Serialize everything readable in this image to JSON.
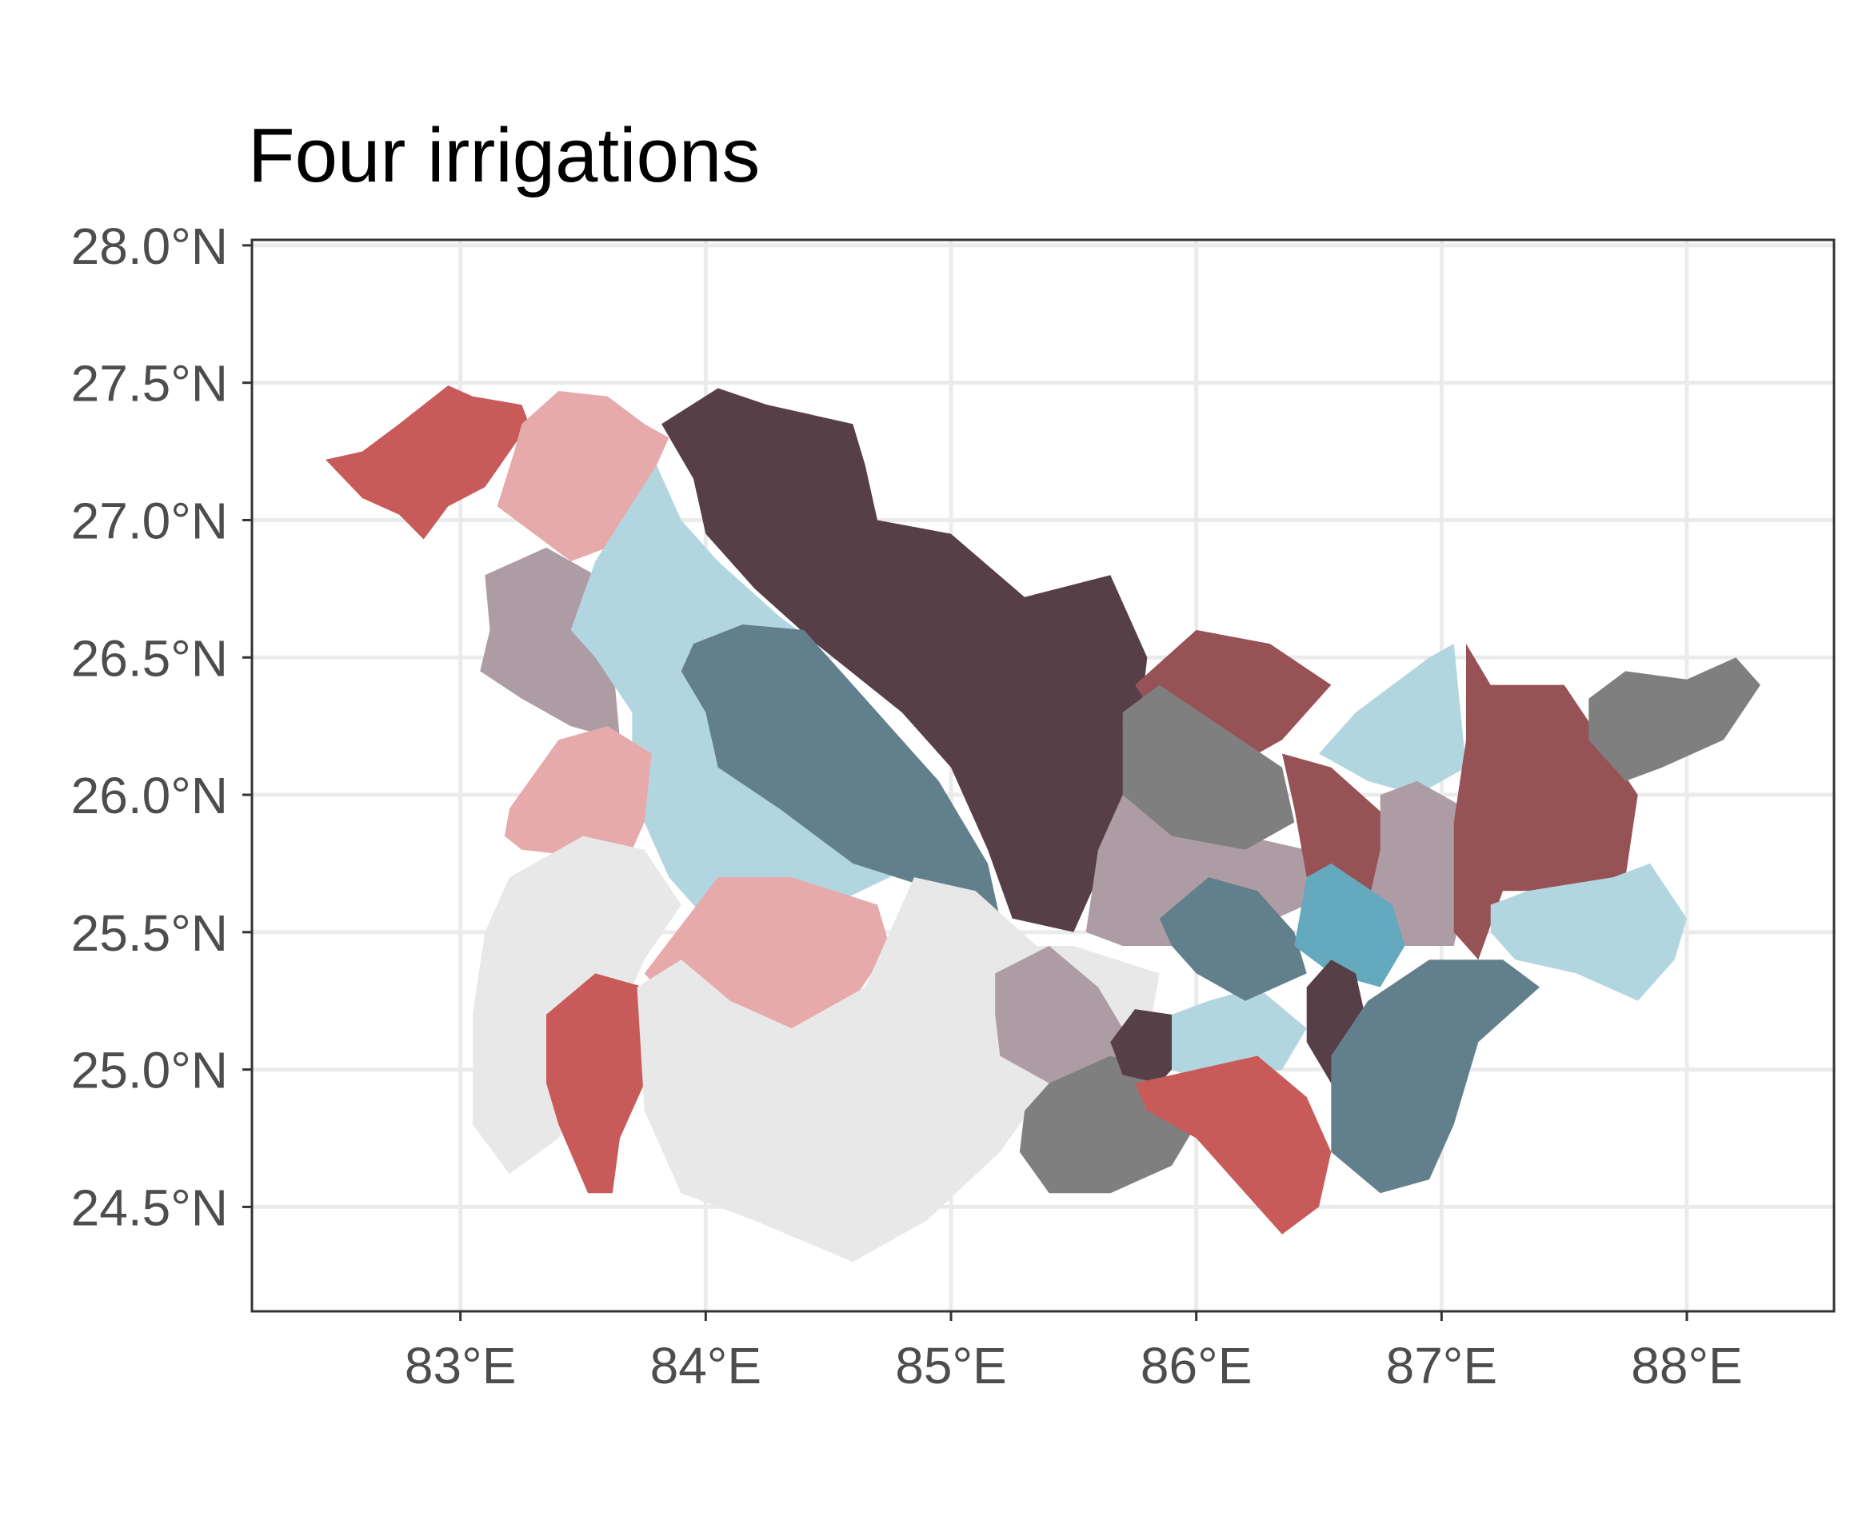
{
  "title": "Four irrigations",
  "x_axis": {
    "ticks": [
      83,
      84,
      85,
      86,
      87,
      88
    ],
    "tick_labels": [
      "83°E",
      "84°E",
      "85°E",
      "86°E",
      "87°E",
      "88°E"
    ],
    "range": [
      82.15,
      88.6
    ]
  },
  "y_axis": {
    "ticks": [
      24.5,
      25.0,
      25.5,
      26.0,
      26.5,
      27.0,
      27.5,
      28.0
    ],
    "tick_labels": [
      "24.5°N",
      "25.0°N",
      "25.5°N",
      "26.0°N",
      "26.5°N",
      "27.0°N",
      "27.5°N",
      "28.0°N"
    ],
    "range": [
      24.12,
      28.02
    ]
  },
  "background_grid": true,
  "legend": "none",
  "palette": {
    "red": "#c95a5a",
    "pink": "#e6aaab",
    "dark_plum": "#573f48",
    "light_blue": "#b2d6e0",
    "mauve": "#ae9ca5",
    "slate_blue": "#62808c",
    "maroon": "#975256",
    "gray": "#7f7f7f",
    "light_gray": "#e8e8e8",
    "teal": "#64a9bd"
  },
  "districts": [
    {
      "id": "nw-red",
      "color": "#c95a5a",
      "outline": [
        [
          82.6,
          27.25
        ],
        [
          82.75,
          27.35
        ],
        [
          82.95,
          27.49
        ],
        [
          83.05,
          27.45
        ],
        [
          83.25,
          27.42
        ],
        [
          83.28,
          27.35
        ],
        [
          83.1,
          27.12
        ],
        [
          82.95,
          27.05
        ],
        [
          82.85,
          26.93
        ],
        [
          82.75,
          27.02
        ],
        [
          82.6,
          27.08
        ],
        [
          82.45,
          27.22
        ]
      ]
    },
    {
      "id": "north-pink",
      "color": "#e6aaab",
      "outline": [
        [
          83.25,
          27.35
        ],
        [
          83.4,
          27.47
        ],
        [
          83.6,
          27.45
        ],
        [
          83.75,
          27.35
        ],
        [
          83.85,
          27.3
        ],
        [
          83.75,
          27.1
        ],
        [
          83.6,
          26.9
        ],
        [
          83.45,
          26.85
        ],
        [
          83.3,
          26.95
        ],
        [
          83.15,
          27.05
        ],
        [
          83.22,
          27.25
        ]
      ]
    },
    {
      "id": "champaran-plum",
      "color": "#573f48",
      "outline": [
        [
          83.82,
          27.35
        ],
        [
          84.05,
          27.48
        ],
        [
          84.25,
          27.42
        ],
        [
          84.6,
          27.35
        ],
        [
          84.65,
          27.2
        ],
        [
          84.7,
          27.0
        ],
        [
          85.0,
          26.95
        ],
        [
          85.3,
          26.72
        ],
        [
          85.65,
          26.8
        ],
        [
          85.8,
          26.5
        ],
        [
          85.75,
          26.1
        ],
        [
          85.65,
          25.8
        ],
        [
          85.5,
          25.5
        ],
        [
          85.25,
          25.55
        ],
        [
          85.15,
          25.8
        ],
        [
          85.0,
          26.1
        ],
        [
          84.8,
          26.3
        ],
        [
          84.45,
          26.55
        ],
        [
          84.2,
          26.75
        ],
        [
          84.0,
          26.95
        ],
        [
          83.95,
          27.15
        ]
      ]
    },
    {
      "id": "west-mauve",
      "color": "#ae9ca5",
      "outline": [
        [
          83.1,
          26.8
        ],
        [
          83.35,
          26.9
        ],
        [
          83.55,
          26.8
        ],
        [
          83.62,
          26.5
        ],
        [
          83.65,
          26.2
        ],
        [
          83.45,
          26.25
        ],
        [
          83.25,
          26.35
        ],
        [
          83.08,
          26.45
        ],
        [
          83.12,
          26.6
        ]
      ]
    },
    {
      "id": "saran-lightblue",
      "color": "#b2d6e0",
      "outline": [
        [
          83.55,
          26.85
        ],
        [
          83.8,
          27.2
        ],
        [
          83.9,
          27.0
        ],
        [
          84.05,
          26.85
        ],
        [
          84.3,
          26.65
        ],
        [
          84.45,
          26.55
        ],
        [
          84.7,
          26.3
        ],
        [
          84.85,
          26.1
        ],
        [
          84.95,
          25.85
        ],
        [
          84.75,
          25.7
        ],
        [
          84.4,
          25.55
        ],
        [
          84.0,
          25.55
        ],
        [
          83.85,
          25.7
        ],
        [
          83.7,
          26.0
        ],
        [
          83.7,
          26.3
        ],
        [
          83.55,
          26.5
        ],
        [
          83.45,
          26.6
        ]
      ]
    },
    {
      "id": "mid-slate",
      "color": "#62808c",
      "outline": [
        [
          83.95,
          26.55
        ],
        [
          84.15,
          26.62
        ],
        [
          84.4,
          26.6
        ],
        [
          84.65,
          26.35
        ],
        [
          84.95,
          26.05
        ],
        [
          85.15,
          25.75
        ],
        [
          85.2,
          25.55
        ],
        [
          84.95,
          25.65
        ],
        [
          84.6,
          25.75
        ],
        [
          84.3,
          25.95
        ],
        [
          84.05,
          26.1
        ],
        [
          84.0,
          26.3
        ],
        [
          83.9,
          26.45
        ]
      ]
    },
    {
      "id": "bhojpur-pink",
      "color": "#e6aaab",
      "outline": [
        [
          83.2,
          25.95
        ],
        [
          83.4,
          26.2
        ],
        [
          83.6,
          26.25
        ],
        [
          83.78,
          26.15
        ],
        [
          83.75,
          25.9
        ],
        [
          83.7,
          25.8
        ],
        [
          83.45,
          25.78
        ],
        [
          83.25,
          25.8
        ],
        [
          83.18,
          25.85
        ]
      ]
    },
    {
      "id": "sw-lightgray",
      "color": "#e8e8e8",
      "outline": [
        [
          83.1,
          25.5
        ],
        [
          83.2,
          25.7
        ],
        [
          83.5,
          25.85
        ],
        [
          83.75,
          25.8
        ],
        [
          83.9,
          25.6
        ],
        [
          83.75,
          25.4
        ],
        [
          83.6,
          25.1
        ],
        [
          83.4,
          24.75
        ],
        [
          83.2,
          24.62
        ],
        [
          83.05,
          24.8
        ],
        [
          83.05,
          25.2
        ]
      ]
    },
    {
      "id": "rohtas-red",
      "color": "#c95a5a",
      "outline": [
        [
          83.35,
          25.2
        ],
        [
          83.55,
          25.35
        ],
        [
          83.75,
          25.3
        ],
        [
          83.75,
          24.95
        ],
        [
          83.65,
          24.75
        ],
        [
          83.62,
          24.55
        ],
        [
          83.52,
          24.55
        ],
        [
          83.4,
          24.8
        ],
        [
          83.35,
          24.95
        ]
      ]
    },
    {
      "id": "patna-pink",
      "color": "#e6aaab",
      "outline": [
        [
          83.75,
          25.35
        ],
        [
          84.05,
          25.7
        ],
        [
          84.35,
          25.7
        ],
        [
          84.7,
          25.6
        ],
        [
          84.75,
          25.45
        ],
        [
          84.6,
          25.25
        ],
        [
          84.35,
          25.15
        ],
        [
          84.1,
          25.2
        ],
        [
          83.85,
          25.25
        ]
      ]
    },
    {
      "id": "south-lightgray",
      "color": "#e8e8e8",
      "outline": [
        [
          83.72,
          25.3
        ],
        [
          83.9,
          25.4
        ],
        [
          84.1,
          25.25
        ],
        [
          84.35,
          25.15
        ],
        [
          84.65,
          25.3
        ],
        [
          84.85,
          25.7
        ],
        [
          85.1,
          25.65
        ],
        [
          85.35,
          25.45
        ],
        [
          85.5,
          25.45
        ],
        [
          85.85,
          25.35
        ],
        [
          85.8,
          25.1
        ],
        [
          85.4,
          24.95
        ],
        [
          85.2,
          24.7
        ],
        [
          84.9,
          24.45
        ],
        [
          84.6,
          24.3
        ],
        [
          84.2,
          24.45
        ],
        [
          83.9,
          24.55
        ],
        [
          83.75,
          24.85
        ]
      ]
    },
    {
      "id": "nalanda-mauve",
      "color": "#ae9ca5",
      "outline": [
        [
          85.18,
          25.35
        ],
        [
          85.4,
          25.45
        ],
        [
          85.6,
          25.3
        ],
        [
          85.7,
          25.15
        ],
        [
          85.65,
          24.95
        ],
        [
          85.4,
          24.95
        ],
        [
          85.2,
          25.05
        ],
        [
          85.18,
          25.2
        ]
      ]
    },
    {
      "id": "nawada-gray",
      "color": "#7f7f7f",
      "outline": [
        [
          85.3,
          24.85
        ],
        [
          85.4,
          24.95
        ],
        [
          85.65,
          25.05
        ],
        [
          85.85,
          25.0
        ],
        [
          86.0,
          24.8
        ],
        [
          85.9,
          24.65
        ],
        [
          85.65,
          24.55
        ],
        [
          85.4,
          24.55
        ],
        [
          85.28,
          24.7
        ]
      ]
    },
    {
      "id": "sheikhpura-plum",
      "color": "#573f48",
      "outline": [
        [
          85.65,
          25.1
        ],
        [
          85.75,
          25.22
        ],
        [
          85.9,
          25.2
        ],
        [
          85.95,
          25.05
        ],
        [
          85.85,
          24.95
        ],
        [
          85.7,
          24.98
        ]
      ]
    },
    {
      "id": "lakhisarai-lightblue",
      "color": "#b2d6e0",
      "outline": [
        [
          85.9,
          25.2
        ],
        [
          86.05,
          25.25
        ],
        [
          86.25,
          25.3
        ],
        [
          86.45,
          25.15
        ],
        [
          86.35,
          25.0
        ],
        [
          86.05,
          24.95
        ],
        [
          85.9,
          25.0
        ]
      ]
    },
    {
      "id": "jamui-red",
      "color": "#c95a5a",
      "outline": [
        [
          85.75,
          24.95
        ],
        [
          86.0,
          25.0
        ],
        [
          86.25,
          25.05
        ],
        [
          86.45,
          24.9
        ],
        [
          86.55,
          24.7
        ],
        [
          86.5,
          24.5
        ],
        [
          86.35,
          24.4
        ],
        [
          86.2,
          24.55
        ],
        [
          86.0,
          24.75
        ],
        [
          85.8,
          24.85
        ]
      ]
    },
    {
      "id": "vaishali-mauve",
      "color": "#ae9ca5",
      "outline": [
        [
          85.55,
          25.5
        ],
        [
          85.6,
          25.8
        ],
        [
          85.7,
          26.0
        ],
        [
          85.95,
          25.95
        ],
        [
          86.2,
          25.85
        ],
        [
          86.45,
          25.8
        ],
        [
          86.45,
          25.6
        ],
        [
          86.2,
          25.5
        ],
        [
          85.95,
          25.45
        ],
        [
          85.7,
          25.45
        ]
      ]
    },
    {
      "id": "samastipur-slate",
      "color": "#62808c",
      "outline": [
        [
          85.85,
          25.55
        ],
        [
          86.05,
          25.7
        ],
        [
          86.25,
          25.65
        ],
        [
          86.4,
          25.5
        ],
        [
          86.45,
          25.35
        ],
        [
          86.2,
          25.25
        ],
        [
          86.0,
          25.35
        ],
        [
          85.9,
          25.45
        ]
      ]
    },
    {
      "id": "darbhanga-maroon",
      "color": "#975256",
      "outline": [
        [
          85.75,
          26.4
        ],
        [
          86.0,
          26.6
        ],
        [
          86.3,
          26.55
        ],
        [
          86.55,
          26.4
        ],
        [
          86.35,
          26.2
        ],
        [
          86.15,
          26.1
        ],
        [
          85.9,
          26.2
        ]
      ]
    },
    {
      "id": "madhubani-gray",
      "color": "#7f7f7f",
      "outline": [
        [
          85.7,
          26.3
        ],
        [
          85.85,
          26.4
        ],
        [
          86.1,
          26.25
        ],
        [
          86.35,
          26.1
        ],
        [
          86.4,
          25.9
        ],
        [
          86.2,
          25.8
        ],
        [
          85.9,
          25.85
        ],
        [
          85.7,
          26.0
        ]
      ]
    },
    {
      "id": "saharsa-maroon",
      "color": "#975256",
      "outline": [
        [
          86.35,
          26.15
        ],
        [
          86.55,
          26.1
        ],
        [
          86.8,
          25.9
        ],
        [
          86.85,
          25.7
        ],
        [
          86.65,
          25.6
        ],
        [
          86.45,
          25.7
        ],
        [
          86.4,
          25.95
        ]
      ]
    },
    {
      "id": "supaul-lightblue",
      "color": "#b2d6e0",
      "outline": [
        [
          86.5,
          26.15
        ],
        [
          86.65,
          26.3
        ],
        [
          86.95,
          26.5
        ],
        [
          87.05,
          26.55
        ],
        [
          87.1,
          26.1
        ],
        [
          86.9,
          26.0
        ],
        [
          86.7,
          26.05
        ]
      ]
    },
    {
      "id": "madhepura-mauve",
      "color": "#ae9ca5",
      "outline": [
        [
          86.75,
          26.0
        ],
        [
          86.9,
          26.05
        ],
        [
          87.1,
          25.95
        ],
        [
          87.1,
          25.65
        ],
        [
          87.05,
          25.45
        ],
        [
          86.85,
          25.45
        ],
        [
          86.7,
          25.6
        ],
        [
          86.75,
          25.8
        ]
      ]
    },
    {
      "id": "khagaria-teal",
      "color": "#64a9bd",
      "outline": [
        [
          86.45,
          25.7
        ],
        [
          86.55,
          25.75
        ],
        [
          86.8,
          25.6
        ],
        [
          86.85,
          25.45
        ],
        [
          86.75,
          25.3
        ],
        [
          86.55,
          25.35
        ],
        [
          86.4,
          25.45
        ]
      ]
    },
    {
      "id": "bhagalpur-plum",
      "color": "#573f48",
      "outline": [
        [
          86.45,
          25.3
        ],
        [
          86.55,
          25.4
        ],
        [
          86.65,
          25.35
        ],
        [
          86.7,
          25.15
        ],
        [
          86.65,
          24.95
        ],
        [
          86.55,
          24.95
        ],
        [
          86.45,
          25.1
        ]
      ]
    },
    {
      "id": "banka-slate",
      "color": "#62808c",
      "outline": [
        [
          86.55,
          25.05
        ],
        [
          86.7,
          25.25
        ],
        [
          86.95,
          25.4
        ],
        [
          87.25,
          25.4
        ],
        [
          87.4,
          25.3
        ],
        [
          87.15,
          25.1
        ],
        [
          87.05,
          24.8
        ],
        [
          86.95,
          24.6
        ],
        [
          86.75,
          24.55
        ],
        [
          86.55,
          24.7
        ]
      ]
    },
    {
      "id": "purnia-maroon",
      "color": "#975256",
      "outline": [
        [
          87.1,
          26.55
        ],
        [
          87.2,
          26.4
        ],
        [
          87.5,
          26.4
        ],
        [
          87.65,
          26.2
        ],
        [
          87.8,
          26.0
        ],
        [
          87.75,
          25.7
        ],
        [
          87.55,
          25.65
        ],
        [
          87.25,
          25.65
        ],
        [
          87.15,
          25.4
        ],
        [
          87.05,
          25.5
        ],
        [
          87.05,
          25.9
        ],
        [
          87.1,
          26.2
        ]
      ]
    },
    {
      "id": "kishanganj-gray",
      "color": "#7f7f7f",
      "outline": [
        [
          87.6,
          26.35
        ],
        [
          87.75,
          26.45
        ],
        [
          88.0,
          26.42
        ],
        [
          88.2,
          26.5
        ],
        [
          88.3,
          26.4
        ],
        [
          88.15,
          26.2
        ],
        [
          87.9,
          26.1
        ],
        [
          87.75,
          26.05
        ],
        [
          87.6,
          26.2
        ]
      ]
    },
    {
      "id": "katihar-lightblue",
      "color": "#b2d6e0",
      "outline": [
        [
          87.2,
          25.6
        ],
        [
          87.35,
          25.65
        ],
        [
          87.7,
          25.7
        ],
        [
          87.85,
          25.75
        ],
        [
          88.0,
          25.55
        ],
        [
          87.95,
          25.4
        ],
        [
          87.8,
          25.25
        ],
        [
          87.55,
          25.35
        ],
        [
          87.3,
          25.4
        ],
        [
          87.2,
          25.5
        ]
      ]
    }
  ]
}
